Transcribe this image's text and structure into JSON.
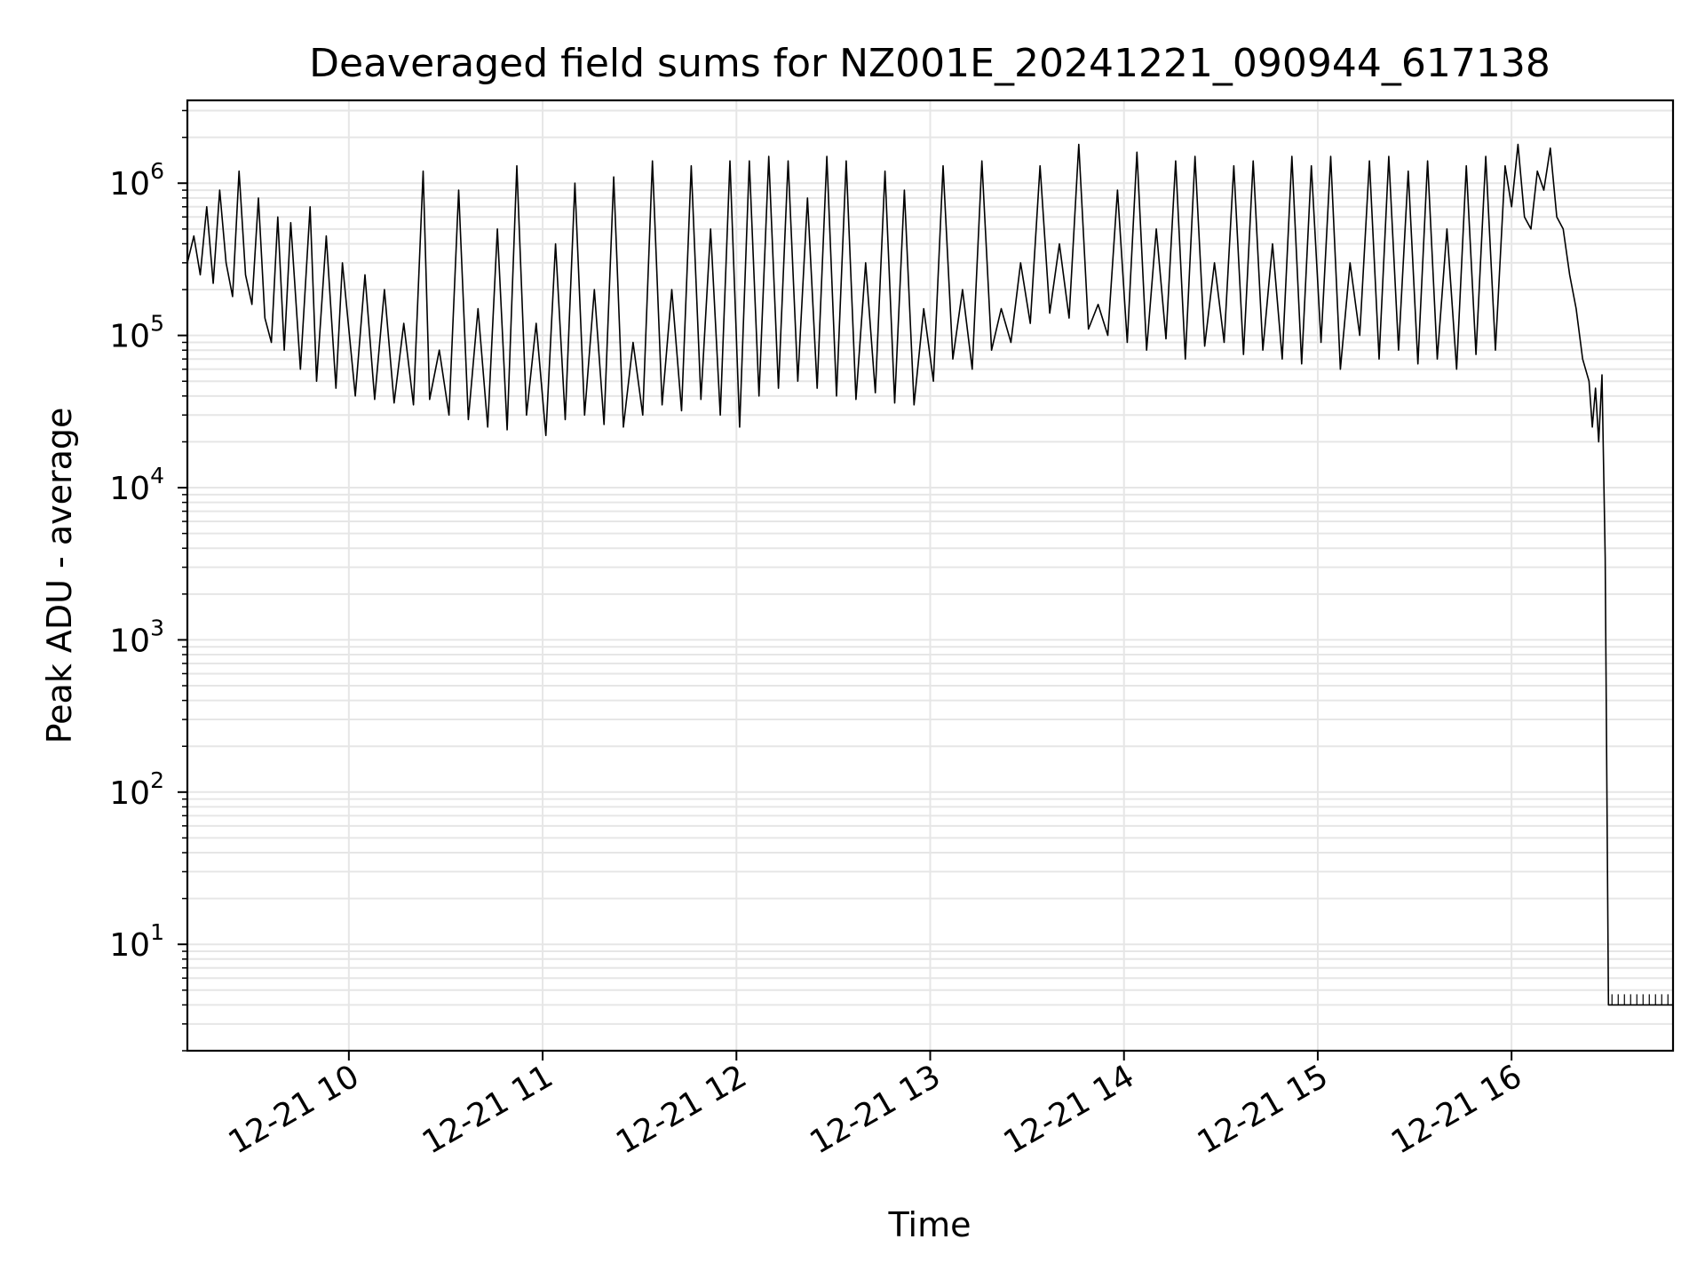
{
  "chart_data": {
    "type": "line",
    "title": "Deaveraged field sums for NZ001E_20241221_090944_617138",
    "xlabel": "Time",
    "ylabel": "Peak ADU - average",
    "yscale": "log",
    "ylim": [
      2,
      3500000
    ],
    "xlim": [
      "2024-12-21 09:10",
      "2024-12-21 16:50"
    ],
    "grid": true,
    "line_color": "#000000",
    "grid_color": "#e6e6e6",
    "x_ticks": [
      {
        "t": "2024-12-21 10:00",
        "label": "12-21 10"
      },
      {
        "t": "2024-12-21 11:00",
        "label": "12-21 11"
      },
      {
        "t": "2024-12-21 12:00",
        "label": "12-21 12"
      },
      {
        "t": "2024-12-21 13:00",
        "label": "12-21 13"
      },
      {
        "t": "2024-12-21 14:00",
        "label": "12-21 14"
      },
      {
        "t": "2024-12-21 15:00",
        "label": "12-21 15"
      },
      {
        "t": "2024-12-21 16:00",
        "label": "12-21 16"
      }
    ],
    "y_ticks": [
      {
        "value": 10,
        "base": "10",
        "exp": "1"
      },
      {
        "value": 100,
        "base": "10",
        "exp": "2"
      },
      {
        "value": 1000,
        "base": "10",
        "exp": "3"
      },
      {
        "value": 10000,
        "base": "10",
        "exp": "4"
      },
      {
        "value": 100000,
        "base": "10",
        "exp": "5"
      },
      {
        "value": 1000000,
        "base": "10",
        "exp": "6"
      }
    ],
    "series": [
      {
        "x": [
          "2024-12-21 09:10",
          "2024-12-21 09:12",
          "2024-12-21 09:14",
          "2024-12-21 09:16",
          "2024-12-21 09:18",
          "2024-12-21 09:20",
          "2024-12-21 09:22",
          "2024-12-21 09:24",
          "2024-12-21 09:26",
          "2024-12-21 09:28",
          "2024-12-21 09:30",
          "2024-12-21 09:32",
          "2024-12-21 09:34",
          "2024-12-21 09:36",
          "2024-12-21 09:38",
          "2024-12-21 09:40",
          "2024-12-21 09:42",
          "2024-12-21 09:45",
          "2024-12-21 09:48",
          "2024-12-21 09:50",
          "2024-12-21 09:53",
          "2024-12-21 09:56",
          "2024-12-21 09:58",
          "2024-12-21 10:02",
          "2024-12-21 10:05",
          "2024-12-21 10:08",
          "2024-12-21 10:11",
          "2024-12-21 10:14",
          "2024-12-21 10:17",
          "2024-12-21 10:20",
          "2024-12-21 10:23",
          "2024-12-21 10:25",
          "2024-12-21 10:28",
          "2024-12-21 10:31",
          "2024-12-21 10:34",
          "2024-12-21 10:37",
          "2024-12-21 10:40",
          "2024-12-21 10:43",
          "2024-12-21 10:46",
          "2024-12-21 10:49",
          "2024-12-21 10:52",
          "2024-12-21 10:55",
          "2024-12-21 10:58",
          "2024-12-21 11:01",
          "2024-12-21 11:04",
          "2024-12-21 11:07",
          "2024-12-21 11:10",
          "2024-12-21 11:13",
          "2024-12-21 11:16",
          "2024-12-21 11:19",
          "2024-12-21 11:22",
          "2024-12-21 11:25",
          "2024-12-21 11:28",
          "2024-12-21 11:31",
          "2024-12-21 11:34",
          "2024-12-21 11:37",
          "2024-12-21 11:40",
          "2024-12-21 11:43",
          "2024-12-21 11:46",
          "2024-12-21 11:49",
          "2024-12-21 11:52",
          "2024-12-21 11:55",
          "2024-12-21 11:58",
          "2024-12-21 12:01",
          "2024-12-21 12:04",
          "2024-12-21 12:07",
          "2024-12-21 12:10",
          "2024-12-21 12:13",
          "2024-12-21 12:16",
          "2024-12-21 12:19",
          "2024-12-21 12:22",
          "2024-12-21 12:25",
          "2024-12-21 12:28",
          "2024-12-21 12:31",
          "2024-12-21 12:34",
          "2024-12-21 12:37",
          "2024-12-21 12:40",
          "2024-12-21 12:43",
          "2024-12-21 12:46",
          "2024-12-21 12:49",
          "2024-12-21 12:52",
          "2024-12-21 12:55",
          "2024-12-21 12:58",
          "2024-12-21 13:01",
          "2024-12-21 13:04",
          "2024-12-21 13:07",
          "2024-12-21 13:10",
          "2024-12-21 13:13",
          "2024-12-21 13:16",
          "2024-12-21 13:19",
          "2024-12-21 13:22",
          "2024-12-21 13:25",
          "2024-12-21 13:28",
          "2024-12-21 13:31",
          "2024-12-21 13:34",
          "2024-12-21 13:37",
          "2024-12-21 13:40",
          "2024-12-21 13:43",
          "2024-12-21 13:46",
          "2024-12-21 13:49",
          "2024-12-21 13:52",
          "2024-12-21 13:55",
          "2024-12-21 13:58",
          "2024-12-21 14:01",
          "2024-12-21 14:04",
          "2024-12-21 14:07",
          "2024-12-21 14:10",
          "2024-12-21 14:13",
          "2024-12-21 14:16",
          "2024-12-21 14:19",
          "2024-12-21 14:22",
          "2024-12-21 14:25",
          "2024-12-21 14:28",
          "2024-12-21 14:31",
          "2024-12-21 14:34",
          "2024-12-21 14:37",
          "2024-12-21 14:40",
          "2024-12-21 14:43",
          "2024-12-21 14:46",
          "2024-12-21 14:49",
          "2024-12-21 14:52",
          "2024-12-21 14:55",
          "2024-12-21 14:58",
          "2024-12-21 15:01",
          "2024-12-21 15:04",
          "2024-12-21 15:07",
          "2024-12-21 15:10",
          "2024-12-21 15:13",
          "2024-12-21 15:16",
          "2024-12-21 15:19",
          "2024-12-21 15:22",
          "2024-12-21 15:25",
          "2024-12-21 15:28",
          "2024-12-21 15:31",
          "2024-12-21 15:34",
          "2024-12-21 15:37",
          "2024-12-21 15:40",
          "2024-12-21 15:43",
          "2024-12-21 15:46",
          "2024-12-21 15:49",
          "2024-12-21 15:52",
          "2024-12-21 15:55",
          "2024-12-21 15:58",
          "2024-12-21 16:00",
          "2024-12-21 16:02",
          "2024-12-21 16:04",
          "2024-12-21 16:06",
          "2024-12-21 16:08",
          "2024-12-21 16:10",
          "2024-12-21 16:12",
          "2024-12-21 16:14",
          "2024-12-21 16:16",
          "2024-12-21 16:18",
          "2024-12-21 16:20",
          "2024-12-21 16:22",
          "2024-12-21 16:24",
          "2024-12-21 16:25",
          "2024-12-21 16:26",
          "2024-12-21 16:27",
          "2024-12-21 16:28",
          "2024-12-21 16:29",
          "2024-12-21 16:30",
          "2024-12-21 16:35",
          "2024-12-21 16:40",
          "2024-12-21 16:45",
          "2024-12-21 16:50"
        ],
        "y": [
          300000,
          450000,
          250000,
          700000,
          220000,
          900000,
          300000,
          180000,
          1200000,
          250000,
          160000,
          800000,
          130000,
          90000,
          600000,
          80000,
          550000,
          60000,
          700000,
          50000,
          450000,
          45000,
          300000,
          40000,
          250000,
          38000,
          200000,
          36000,
          120000,
          35000,
          1200000,
          38000,
          80000,
          30000,
          900000,
          28000,
          150000,
          25000,
          500000,
          24000,
          1300000,
          30000,
          120000,
          22000,
          400000,
          28000,
          1000000,
          30000,
          200000,
          26000,
          1100000,
          25000,
          90000,
          30000,
          1400000,
          35000,
          200000,
          32000,
          1300000,
          38000,
          500000,
          30000,
          1400000,
          25000,
          1400000,
          40000,
          1500000,
          45000,
          1400000,
          50000,
          800000,
          45000,
          1500000,
          40000,
          1400000,
          38000,
          300000,
          42000,
          1200000,
          36000,
          900000,
          35000,
          150000,
          50000,
          1300000,
          70000,
          200000,
          60000,
          1400000,
          80000,
          150000,
          90000,
          300000,
          120000,
          1300000,
          140000,
          400000,
          130000,
          1800000,
          110000,
          160000,
          100000,
          900000,
          90000,
          1600000,
          80000,
          500000,
          95000,
          1400000,
          70000,
          1500000,
          85000,
          300000,
          90000,
          1300000,
          75000,
          1400000,
          80000,
          400000,
          70000,
          1500000,
          65000,
          1300000,
          90000,
          1500000,
          60000,
          300000,
          100000,
          1400000,
          70000,
          1500000,
          80000,
          1200000,
          65000,
          1400000,
          70000,
          500000,
          60000,
          1300000,
          75000,
          1500000,
          80000,
          1300000,
          700000,
          1800000,
          600000,
          500000,
          1200000,
          900000,
          1700000,
          600000,
          500000,
          250000,
          150000,
          70000,
          50000,
          25000,
          45000,
          20000,
          55000,
          3500,
          4,
          4,
          4,
          4,
          4
        ]
      }
    ]
  }
}
